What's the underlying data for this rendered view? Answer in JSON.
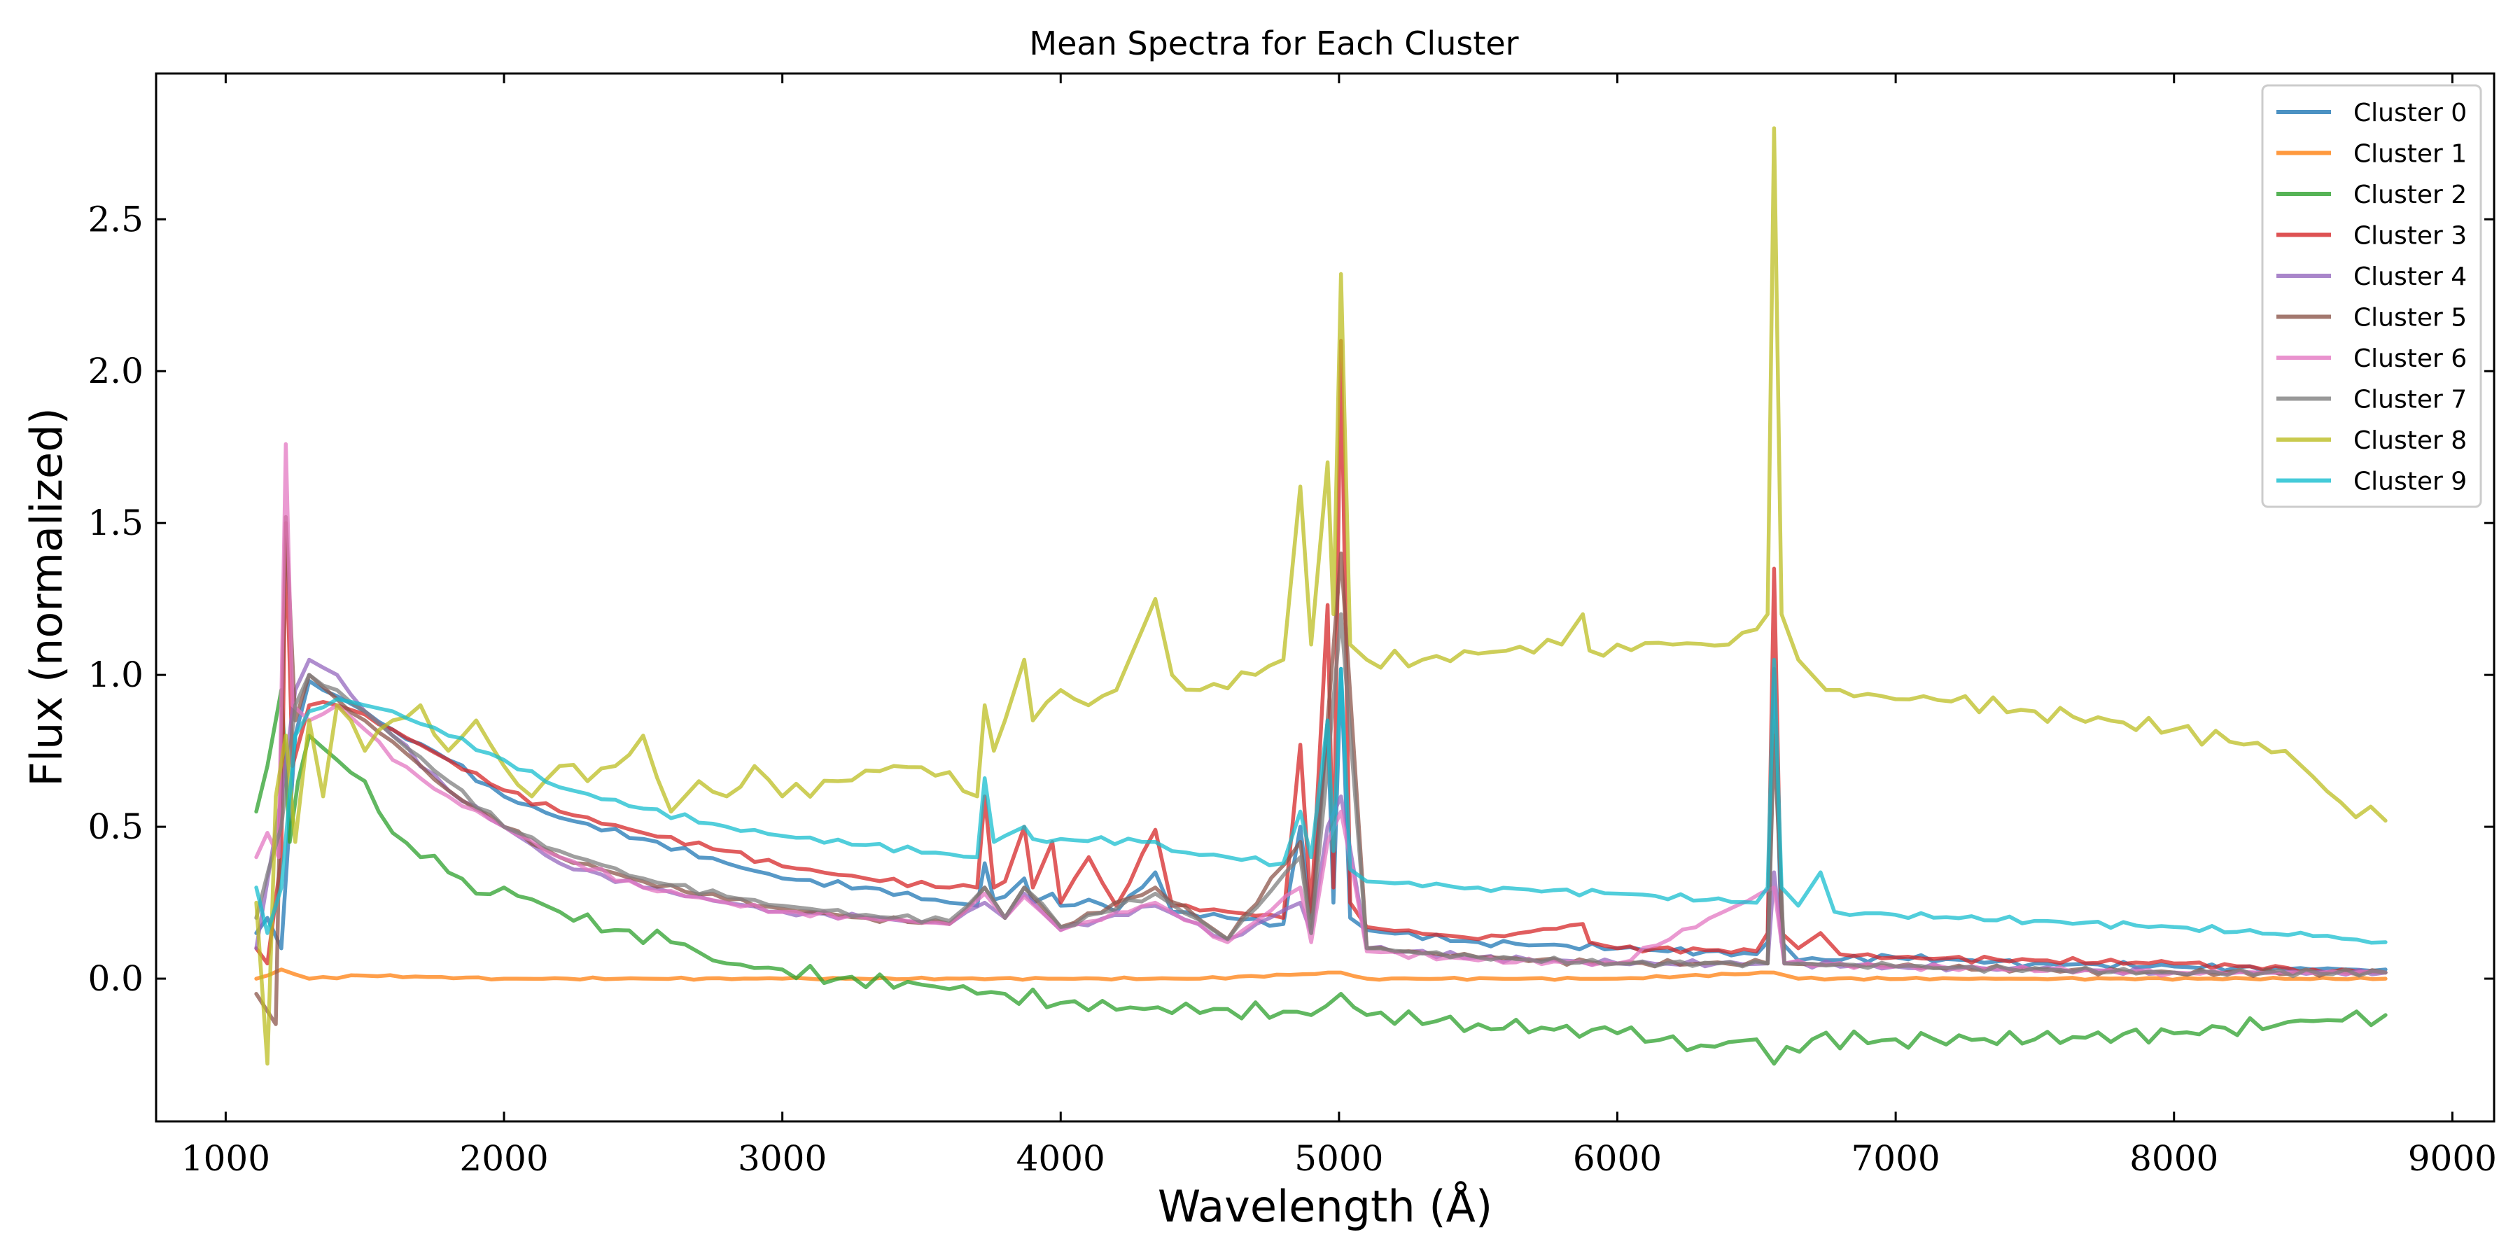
{
  "chart_data": {
    "type": "line",
    "title": "Mean Spectra for Each Cluster",
    "xlabel": "Wavelength (Å)",
    "ylabel": "Flux (normalized)",
    "xlim": [
      750,
      9150
    ],
    "ylim": [
      -0.47,
      2.98
    ],
    "xticks": [
      1000,
      2000,
      3000,
      4000,
      5000,
      6000,
      7000,
      8000,
      9000
    ],
    "yticks": [
      0.0,
      0.5,
      1.0,
      1.5,
      2.0,
      2.5
    ],
    "xtick_labels": [
      "1000",
      "2000",
      "3000",
      "4000",
      "5000",
      "6000",
      "7000",
      "8000",
      "9000"
    ],
    "ytick_labels": [
      "0.0",
      "0.5",
      "1.0",
      "1.5",
      "2.0",
      "2.5"
    ],
    "grid": false,
    "legend_position": "top-right",
    "series": [
      {
        "name": "Cluster 0",
        "color": "#1f77b4",
        "x": [
          1110,
          1150,
          1200,
          1250,
          1300,
          1400,
          1500,
          1600,
          1800,
          2000,
          2200,
          2500,
          2800,
          3000,
          3300,
          3600,
          3700,
          3727,
          3760,
          3800,
          3869,
          3900,
          3970,
          4000,
          4101,
          4200,
          4340,
          4400,
          4600,
          4800,
          4861,
          4900,
          4959,
          4980,
          5007,
          5040,
          5100,
          5500,
          6000,
          6500,
          6540,
          6563,
          6590,
          6650,
          7000,
          7500,
          8000,
          8500,
          8760
        ],
        "y": [
          0.15,
          0.2,
          0.1,
          0.8,
          0.98,
          0.93,
          0.88,
          0.82,
          0.72,
          0.6,
          0.53,
          0.46,
          0.38,
          0.33,
          0.3,
          0.25,
          0.24,
          0.38,
          0.26,
          0.27,
          0.33,
          0.25,
          0.28,
          0.24,
          0.26,
          0.22,
          0.35,
          0.22,
          0.2,
          0.18,
          0.5,
          0.2,
          0.85,
          0.25,
          1.02,
          0.2,
          0.16,
          0.12,
          0.1,
          0.08,
          0.12,
          1.02,
          0.12,
          0.06,
          0.07,
          0.05,
          0.04,
          0.03,
          0.03
        ]
      },
      {
        "name": "Cluster 1",
        "color": "#ff7f0e",
        "x": [
          1110,
          1200,
          1300,
          1500,
          2000,
          3000,
          4000,
          4500,
          5007,
          5100,
          6000,
          6563,
          6650,
          7500,
          8760
        ],
        "y": [
          0.0,
          0.03,
          0.0,
          0.01,
          0.0,
          0.0,
          0.0,
          0.0,
          0.02,
          0.0,
          0.0,
          0.02,
          0.0,
          0.0,
          0.0
        ]
      },
      {
        "name": "Cluster 2",
        "color": "#2ca02c",
        "x": [
          1110,
          1150,
          1200,
          1230,
          1260,
          1300,
          1400,
          1500,
          1600,
          1700,
          1800,
          1900,
          2000,
          2200,
          2400,
          2600,
          2800,
          3000,
          3200,
          3500,
          3800,
          4000,
          4300,
          4600,
          4900,
          5007,
          5100,
          5500,
          6000,
          6300,
          6500,
          6563,
          6700,
          7000,
          7500,
          8000,
          8500,
          8760
        ],
        "y": [
          0.55,
          0.7,
          0.95,
          0.45,
          0.65,
          0.8,
          0.72,
          0.65,
          0.48,
          0.4,
          0.35,
          0.28,
          0.3,
          0.22,
          0.16,
          0.12,
          0.05,
          0.03,
          0.0,
          -0.02,
          -0.05,
          -0.08,
          -0.1,
          -0.1,
          -0.12,
          -0.05,
          -0.12,
          -0.15,
          -0.18,
          -0.22,
          -0.2,
          -0.28,
          -0.2,
          -0.2,
          -0.2,
          -0.18,
          -0.14,
          -0.12
        ]
      },
      {
        "name": "Cluster 3",
        "color": "#d62728",
        "x": [
          1110,
          1150,
          1200,
          1216,
          1240,
          1300,
          1400,
          1500,
          1600,
          1800,
          2000,
          2200,
          2500,
          2800,
          3000,
          3300,
          3600,
          3700,
          3727,
          3760,
          3800,
          3869,
          3900,
          3970,
          4000,
          4101,
          4200,
          4340,
          4400,
          4600,
          4800,
          4861,
          4900,
          4959,
          4980,
          5007,
          5040,
          5100,
          5500,
          5876,
          5900,
          6000,
          6500,
          6540,
          6563,
          6590,
          6650,
          6730,
          6800,
          7000,
          7500,
          8000,
          8500,
          8760
        ],
        "y": [
          0.1,
          0.05,
          0.4,
          1.5,
          0.7,
          0.9,
          0.9,
          0.87,
          0.82,
          0.72,
          0.62,
          0.55,
          0.48,
          0.42,
          0.37,
          0.33,
          0.3,
          0.3,
          0.6,
          0.3,
          0.32,
          0.5,
          0.3,
          0.45,
          0.25,
          0.4,
          0.24,
          0.49,
          0.24,
          0.22,
          0.2,
          0.77,
          0.22,
          1.23,
          0.3,
          2.1,
          0.25,
          0.17,
          0.13,
          0.18,
          0.12,
          0.1,
          0.09,
          0.15,
          1.35,
          0.15,
          0.1,
          0.15,
          0.08,
          0.07,
          0.06,
          0.05,
          0.03,
          0.02
        ]
      },
      {
        "name": "Cluster 4",
        "color": "#9467bd",
        "x": [
          1110,
          1200,
          1250,
          1300,
          1400,
          1500,
          1600,
          1800,
          2000,
          2200,
          2500,
          2800,
          3000,
          3300,
          3600,
          3727,
          3800,
          3869,
          4000,
          4340,
          4600,
          4861,
          4900,
          4959,
          5007,
          5100,
          5500,
          6000,
          6540,
          6563,
          6600,
          7000,
          7500,
          8000,
          8760
        ],
        "y": [
          0.1,
          0.6,
          0.95,
          1.05,
          1.0,
          0.88,
          0.8,
          0.62,
          0.5,
          0.38,
          0.3,
          0.25,
          0.22,
          0.2,
          0.18,
          0.25,
          0.2,
          0.28,
          0.16,
          0.24,
          0.13,
          0.25,
          0.15,
          0.5,
          0.6,
          0.1,
          0.07,
          0.05,
          0.05,
          0.35,
          0.05,
          0.04,
          0.03,
          0.02,
          0.02
        ]
      },
      {
        "name": "Cluster 5",
        "color": "#8c564b",
        "x": [
          1110,
          1180,
          1216,
          1250,
          1300,
          1400,
          1500,
          1600,
          1800,
          2000,
          2200,
          2500,
          2800,
          3000,
          3300,
          3600,
          3727,
          3800,
          3869,
          4000,
          4340,
          4600,
          4861,
          4900,
          4959,
          5007,
          5100,
          5500,
          6000,
          6540,
          6563,
          6600,
          7000,
          7500,
          8000,
          8760
        ],
        "y": [
          -0.05,
          -0.15,
          1.52,
          0.85,
          1.0,
          0.92,
          0.85,
          0.78,
          0.62,
          0.5,
          0.4,
          0.32,
          0.26,
          0.23,
          0.2,
          0.18,
          0.3,
          0.2,
          0.3,
          0.17,
          0.3,
          0.13,
          0.45,
          0.15,
          0.85,
          1.4,
          0.1,
          0.07,
          0.05,
          0.05,
          0.8,
          0.05,
          0.04,
          0.03,
          0.02,
          0.02
        ]
      },
      {
        "name": "Cluster 6",
        "color": "#e377c2",
        "x": [
          1110,
          1150,
          1190,
          1216,
          1240,
          1300,
          1400,
          1500,
          1600,
          1800,
          2000,
          2200,
          2500,
          2800,
          3000,
          3300,
          3600,
          3727,
          3800,
          3869,
          4000,
          4340,
          4600,
          4861,
          4900,
          4959,
          5007,
          5100,
          5500,
          6000,
          6563,
          6600,
          7000,
          8000,
          8760
        ],
        "y": [
          0.4,
          0.48,
          0.4,
          1.76,
          0.9,
          0.85,
          0.9,
          0.82,
          0.72,
          0.6,
          0.5,
          0.4,
          0.3,
          0.25,
          0.22,
          0.2,
          0.18,
          0.28,
          0.2,
          0.27,
          0.16,
          0.25,
          0.12,
          0.3,
          0.12,
          0.45,
          0.55,
          0.09,
          0.06,
          0.05,
          0.3,
          0.05,
          0.04,
          0.02,
          0.02
        ]
      },
      {
        "name": "Cluster 7",
        "color": "#7f7f7f",
        "x": [
          1110,
          1200,
          1250,
          1300,
          1400,
          1500,
          1600,
          1800,
          2000,
          2200,
          2500,
          2800,
          3000,
          3300,
          3600,
          3727,
          3800,
          3869,
          4000,
          4340,
          4600,
          4861,
          4900,
          4959,
          5007,
          5100,
          5500,
          6000,
          6540,
          6563,
          6600,
          7000,
          8000,
          8760
        ],
        "y": [
          0.2,
          0.5,
          0.9,
          1.0,
          0.95,
          0.88,
          0.8,
          0.65,
          0.5,
          0.42,
          0.33,
          0.27,
          0.24,
          0.21,
          0.19,
          0.3,
          0.2,
          0.3,
          0.17,
          0.28,
          0.13,
          0.4,
          0.15,
          0.7,
          1.2,
          0.1,
          0.07,
          0.05,
          0.05,
          0.85,
          0.05,
          0.04,
          0.02,
          0.02
        ]
      },
      {
        "name": "Cluster 8",
        "color": "#bcbd22",
        "x": [
          1110,
          1150,
          1180,
          1216,
          1250,
          1300,
          1350,
          1400,
          1500,
          1600,
          1700,
          1800,
          1900,
          2000,
          2100,
          2200,
          2300,
          2400,
          2500,
          2600,
          2700,
          2800,
          2900,
          3000,
          3200,
          3400,
          3600,
          3700,
          3727,
          3760,
          3800,
          3869,
          3900,
          4000,
          4100,
          4200,
          4340,
          4400,
          4500,
          4700,
          4800,
          4861,
          4900,
          4959,
          4980,
          5007,
          5040,
          5100,
          5300,
          5500,
          5800,
          5876,
          5900,
          6000,
          6200,
          6400,
          6500,
          6540,
          6563,
          6590,
          6650,
          6700,
          6800,
          7000,
          7100,
          7500,
          8000,
          8200,
          8400,
          8600,
          8760
        ],
        "y": [
          0.25,
          -0.28,
          0.6,
          0.8,
          0.45,
          0.85,
          0.6,
          0.9,
          0.75,
          0.85,
          0.9,
          0.75,
          0.85,
          0.7,
          0.6,
          0.7,
          0.65,
          0.7,
          0.8,
          0.55,
          0.65,
          0.6,
          0.7,
          0.6,
          0.65,
          0.7,
          0.68,
          0.6,
          0.9,
          0.75,
          0.85,
          1.05,
          0.85,
          0.95,
          0.9,
          0.95,
          1.25,
          1.0,
          0.95,
          1.0,
          1.05,
          1.62,
          1.1,
          1.7,
          1.2,
          2.32,
          1.1,
          1.05,
          1.05,
          1.07,
          1.1,
          1.2,
          1.08,
          1.1,
          1.1,
          1.1,
          1.15,
          1.2,
          2.8,
          1.2,
          1.05,
          1.0,
          0.95,
          0.92,
          0.93,
          0.88,
          0.82,
          0.78,
          0.75,
          0.58,
          0.52
        ]
      },
      {
        "name": "Cluster 9",
        "color": "#17becf",
        "x": [
          1110,
          1150,
          1200,
          1250,
          1300,
          1400,
          1500,
          1600,
          1800,
          2000,
          2200,
          2500,
          2800,
          3000,
          3300,
          3600,
          3700,
          3727,
          3760,
          3800,
          3869,
          3900,
          4000,
          4340,
          4400,
          4600,
          4800,
          4861,
          4900,
          4959,
          4980,
          5007,
          5040,
          5100,
          5500,
          6000,
          6500,
          6540,
          6563,
          6590,
          6650,
          6730,
          6780,
          7000,
          7500,
          8000,
          8500,
          8760
        ],
        "y": [
          0.3,
          0.15,
          0.3,
          0.8,
          0.88,
          0.92,
          0.9,
          0.88,
          0.8,
          0.72,
          0.63,
          0.56,
          0.5,
          0.47,
          0.44,
          0.41,
          0.4,
          0.66,
          0.45,
          0.47,
          0.5,
          0.46,
          0.46,
          0.45,
          0.42,
          0.4,
          0.38,
          0.55,
          0.4,
          0.85,
          0.42,
          1.02,
          0.36,
          0.32,
          0.3,
          0.28,
          0.25,
          0.3,
          1.05,
          0.3,
          0.24,
          0.35,
          0.22,
          0.21,
          0.19,
          0.17,
          0.14,
          0.12
        ]
      }
    ]
  }
}
